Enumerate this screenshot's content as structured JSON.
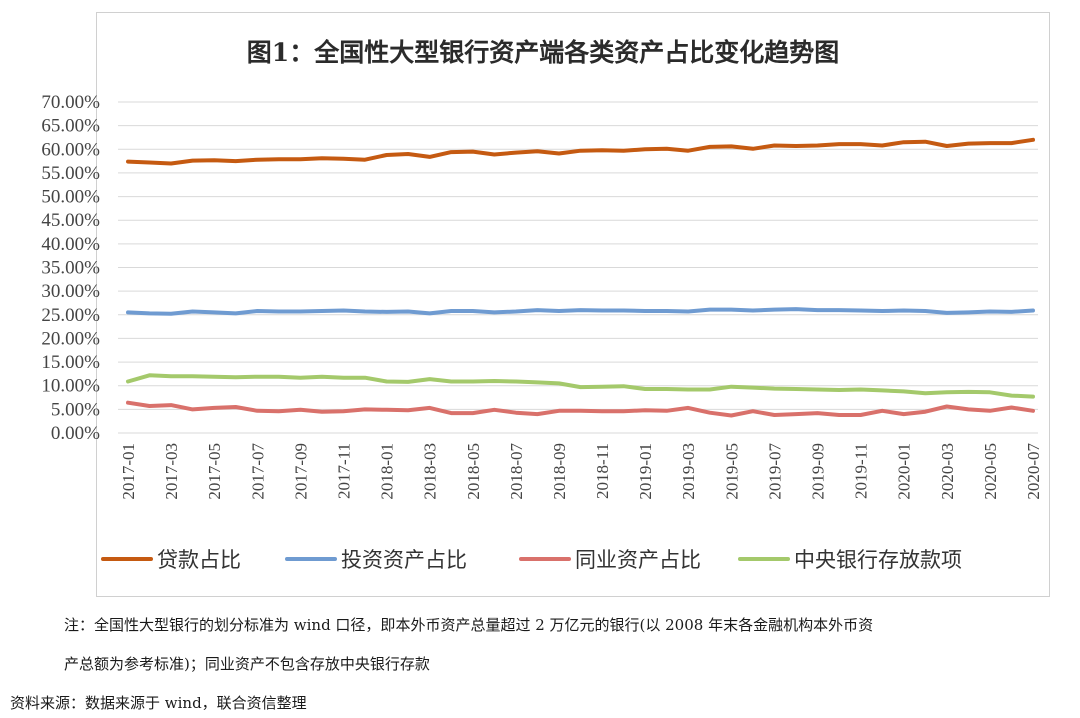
{
  "chart_data": {
    "type": "line",
    "title": "图1：全国性大型银行资产端各类资产占比变化趋势图",
    "xlabel": "",
    "ylabel": "",
    "ylim": [
      0,
      0.7
    ],
    "y_ticks": [
      "0.00%",
      "5.00%",
      "10.00%",
      "15.00%",
      "20.00%",
      "25.00%",
      "30.00%",
      "35.00%",
      "40.00%",
      "45.00%",
      "50.00%",
      "55.00%",
      "60.00%",
      "65.00%",
      "70.00%"
    ],
    "x": [
      "2017-01",
      "2017-02",
      "2017-03",
      "2017-04",
      "2017-05",
      "2017-06",
      "2017-07",
      "2017-08",
      "2017-09",
      "2017-10",
      "2017-11",
      "2017-12",
      "2018-01",
      "2018-02",
      "2018-03",
      "2018-04",
      "2018-05",
      "2018-06",
      "2018-07",
      "2018-08",
      "2018-09",
      "2018-10",
      "2018-11",
      "2018-12",
      "2019-01",
      "2019-02",
      "2019-03",
      "2019-04",
      "2019-05",
      "2019-06",
      "2019-07",
      "2019-08",
      "2019-09",
      "2019-10",
      "2019-11",
      "2019-12",
      "2020-01",
      "2020-02",
      "2020-03",
      "2020-04",
      "2020-05",
      "2020-06",
      "2020-07"
    ],
    "x_tick_labels": [
      "2017-01",
      "2017-03",
      "2017-05",
      "2017-07",
      "2017-09",
      "2017-11",
      "2018-01",
      "2018-03",
      "2018-05",
      "2018-07",
      "2018-09",
      "2018-11",
      "2019-01",
      "2019-03",
      "2019-05",
      "2019-07",
      "2019-09",
      "2019-11",
      "2020-01",
      "2020-03",
      "2020-05",
      "2020-07"
    ],
    "grid": true,
    "legend_position": "bottom",
    "series": [
      {
        "name": "贷款占比",
        "color": "#c55a11",
        "values": [
          0.574,
          0.572,
          0.57,
          0.576,
          0.577,
          0.575,
          0.578,
          0.579,
          0.579,
          0.581,
          0.58,
          0.578,
          0.588,
          0.59,
          0.584,
          0.594,
          0.595,
          0.589,
          0.593,
          0.596,
          0.591,
          0.597,
          0.598,
          0.597,
          0.6,
          0.601,
          0.597,
          0.605,
          0.606,
          0.601,
          0.608,
          0.607,
          0.608,
          0.611,
          0.611,
          0.608,
          0.615,
          0.616,
          0.607,
          0.612,
          0.613,
          0.613,
          0.62
        ]
      },
      {
        "name": "投资资产占比",
        "color": "#6f9bd1",
        "values": [
          0.255,
          0.253,
          0.252,
          0.257,
          0.255,
          0.253,
          0.258,
          0.257,
          0.257,
          0.258,
          0.259,
          0.257,
          0.256,
          0.257,
          0.253,
          0.258,
          0.258,
          0.255,
          0.257,
          0.26,
          0.258,
          0.26,
          0.259,
          0.259,
          0.258,
          0.258,
          0.257,
          0.261,
          0.261,
          0.259,
          0.261,
          0.262,
          0.26,
          0.26,
          0.259,
          0.258,
          0.259,
          0.258,
          0.254,
          0.255,
          0.257,
          0.256,
          0.259
        ]
      },
      {
        "name": "同业资产占比",
        "color": "#d9716b",
        "values": [
          0.064,
          0.057,
          0.059,
          0.05,
          0.053,
          0.055,
          0.047,
          0.046,
          0.049,
          0.045,
          0.046,
          0.05,
          0.049,
          0.048,
          0.053,
          0.042,
          0.042,
          0.049,
          0.043,
          0.04,
          0.047,
          0.047,
          0.046,
          0.046,
          0.048,
          0.047,
          0.053,
          0.043,
          0.037,
          0.046,
          0.038,
          0.04,
          0.042,
          0.038,
          0.038,
          0.047,
          0.04,
          0.045,
          0.056,
          0.05,
          0.047,
          0.054,
          0.047
        ]
      },
      {
        "name": "中央银行存放款项",
        "color": "#a4c96b",
        "values": [
          0.109,
          0.122,
          0.12,
          0.12,
          0.119,
          0.118,
          0.119,
          0.119,
          0.117,
          0.119,
          0.117,
          0.117,
          0.109,
          0.108,
          0.114,
          0.109,
          0.109,
          0.11,
          0.109,
          0.107,
          0.105,
          0.097,
          0.098,
          0.099,
          0.093,
          0.093,
          0.092,
          0.092,
          0.098,
          0.096,
          0.094,
          0.093,
          0.092,
          0.091,
          0.092,
          0.09,
          0.088,
          0.084,
          0.086,
          0.087,
          0.086,
          0.079,
          0.077
        ]
      }
    ]
  },
  "notes": {
    "line1": "注：全国性大型银行的划分标准为 wind 口径，即本外币资产总量超过 2 万亿元的银行(以 2008 年末各金融机构本外币资",
    "line2": "产总额为参考标准)；同业资产不包含存放中央银行存款",
    "source": "资料来源：数据来源于 wind，联合资信整理"
  }
}
